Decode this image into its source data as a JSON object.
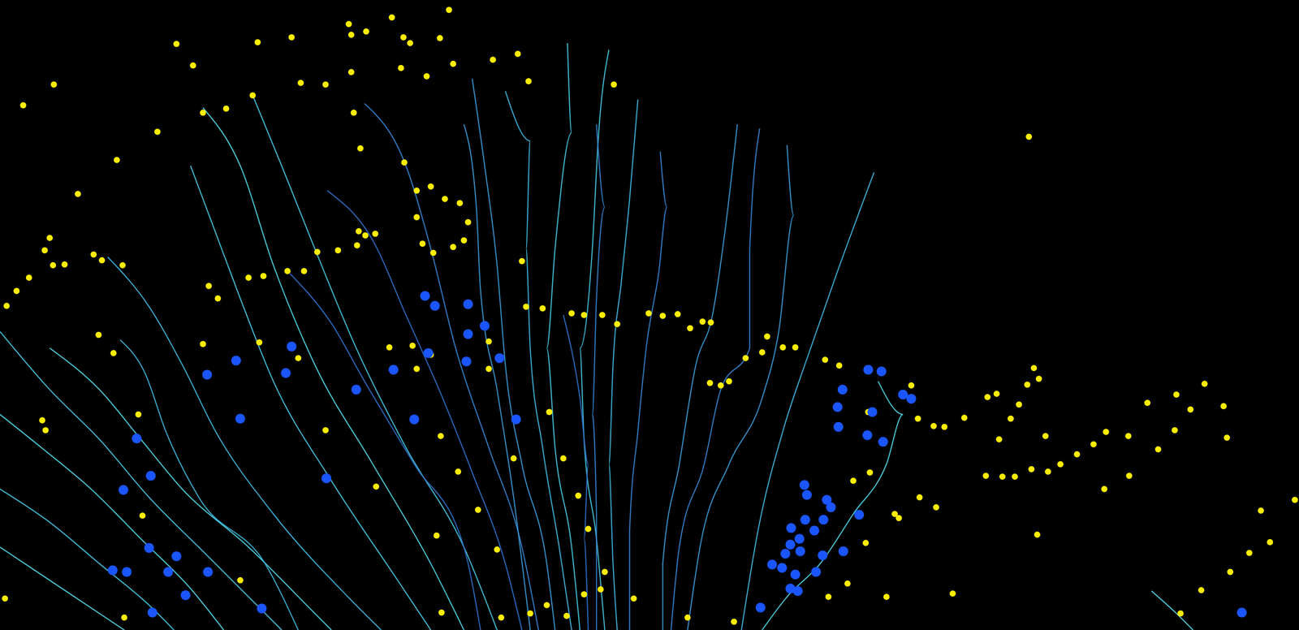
{
  "chart_data": {
    "type": "scatter",
    "xlim": [
      0,
      1568
    ],
    "ylim": [
      0,
      760
    ],
    "tick_labels": false,
    "grid": false,
    "series": [
      {
        "type": "line",
        "color": "#3fb8e0",
        "x": [
          1055,
          1010,
          975,
          945,
          915,
          895
        ],
        "y": [
          552,
          430,
          330,
          240,
          120,
          0
        ]
      },
      {
        "type": "line",
        "color": "#3a9ad8",
        "x": [
          950,
          958,
          940,
          920,
          880,
          845,
          830
        ],
        "y": [
          585,
          500,
          360,
          280,
          200,
          100,
          0
        ]
      },
      {
        "type": "line",
        "color": "#3585d4",
        "x": [
          917,
          905,
          905,
          870,
          850,
          820,
          810
        ],
        "y": [
          605,
          460,
          340,
          290,
          200,
          100,
          0
        ]
      },
      {
        "type": "line",
        "color": "#3a9ad8",
        "x": [
          890,
          875,
          860,
          840,
          820,
          800,
          800
        ],
        "y": [
          610,
          480,
          380,
          320,
          200,
          80,
          0
        ]
      },
      {
        "type": "line",
        "color": "#3585d4",
        "x": [
          797,
          805,
          795,
          780,
          770,
          760,
          760
        ],
        "y": [
          577,
          510,
          430,
          340,
          240,
          120,
          0
        ]
      },
      {
        "type": "line",
        "color": "#3fb8e0",
        "x": [
          770,
          760,
          750,
          740,
          735,
          740,
          745
        ],
        "y": [
          640,
          520,
          420,
          320,
          200,
          80,
          0
        ]
      },
      {
        "type": "line",
        "color": "#45c8e2",
        "x": [
          735,
          722,
          715,
          700,
          705,
          720,
          730
        ],
        "y": [
          700,
          590,
          460,
          340,
          230,
          110,
          0
        ]
      },
      {
        "type": "line",
        "color": "#45c8e2",
        "x": [
          685,
          690,
          670,
          660,
          670,
          690,
          700
        ],
        "y": [
          708,
          600,
          460,
          340,
          220,
          100,
          0
        ]
      },
      {
        "type": "line",
        "color": "#3fb8e0",
        "x": [
          610,
          640,
          635,
          640,
          655,
          675,
          690
        ],
        "y": [
          650,
          590,
          460,
          340,
          220,
          100,
          0
        ]
      },
      {
        "type": "line",
        "color": "#3a9ad8",
        "x": [
          570,
          585,
          600,
          610,
          630,
          660,
          670
        ],
        "y": [
          665,
          560,
          440,
          320,
          200,
          80,
          0
        ]
      },
      {
        "type": "line",
        "color": "#3585d4",
        "x": [
          440,
          490,
          520,
          550,
          590,
          630,
          650
        ],
        "y": [
          635,
          560,
          460,
          340,
          220,
          100,
          0
        ]
      },
      {
        "type": "line",
        "color": "#2f70cc",
        "x": [
          395,
          450,
          490,
          530,
          570,
          610,
          630
        ],
        "y": [
          530,
          470,
          380,
          290,
          190,
          80,
          0
        ]
      },
      {
        "type": "line",
        "color": "#45c8e2",
        "x": [
          305,
          340,
          380,
          430,
          490,
          560,
          600
        ],
        "y": [
          645,
          560,
          460,
          340,
          220,
          100,
          0
        ]
      },
      {
        "type": "line",
        "color": "#4fd6e6",
        "x": [
          245,
          290,
          330,
          380,
          450,
          520,
          560
        ],
        "y": [
          630,
          560,
          440,
          320,
          200,
          80,
          0
        ]
      },
      {
        "type": "line",
        "color": "#45c8e2",
        "x": [
          230,
          260,
          290,
          330,
          400,
          480,
          520
        ],
        "y": [
          560,
          480,
          400,
          300,
          180,
          60,
          0
        ]
      },
      {
        "type": "line",
        "color": "#3fb8e0",
        "x": [
          130,
          180,
          220,
          260,
          330,
          420,
          460
        ],
        "y": [
          450,
          390,
          320,
          240,
          140,
          40,
          0
        ]
      },
      {
        "type": "line",
        "color": "#4fd6e6",
        "x": [
          60,
          120,
          170,
          220,
          300,
          380,
          400
        ],
        "y": [
          340,
          290,
          230,
          170,
          100,
          20,
          0
        ]
      },
      {
        "type": "line",
        "color": "#45c8e2",
        "x": [
          0,
          60,
          120,
          180,
          250,
          320,
          340
        ],
        "y": [
          360,
          290,
          230,
          160,
          90,
          20,
          0
        ]
      },
      {
        "type": "line",
        "color": "#4fd6e6",
        "x": [
          0,
          50,
          110,
          170,
          230,
          270
        ],
        "y": [
          260,
          220,
          170,
          110,
          50,
          0
        ]
      },
      {
        "type": "line",
        "color": "#45c8e2",
        "x": [
          0,
          60,
          120,
          180,
          210
        ],
        "y": [
          170,
          130,
          80,
          30,
          0
        ]
      },
      {
        "type": "line",
        "color": "#4fd6e6",
        "x": [
          0,
          60,
          120,
          150
        ],
        "y": [
          100,
          60,
          20,
          0
        ]
      },
      {
        "type": "line",
        "color": "#3fb8e0",
        "x": [
          145,
          175,
          200,
          240,
          320,
          360
        ],
        "y": [
          350,
          310,
          240,
          160,
          80,
          0
        ]
      },
      {
        "type": "line",
        "color": "#4fd6e6",
        "x": [
          1060,
          1090,
          1070,
          1030,
          990,
          950,
          920
        ],
        "y": [
          300,
          260,
          200,
          140,
          80,
          40,
          0
        ]
      },
      {
        "type": "line",
        "color": "#4fd6e6",
        "x": [
          1390,
          1420,
          1440
        ],
        "y": [
          47,
          20,
          0
        ]
      },
      {
        "type": "line",
        "color": "#2f70cc",
        "x": [
          680,
          700,
          710,
          705,
          710
        ],
        "y": [
          380,
          280,
          200,
          110,
          0
        ]
      },
      {
        "type": "line",
        "color": "#3a9ad8",
        "x": [
          560,
          575,
          580,
          600,
          620,
          640
        ],
        "y": [
          610,
          510,
          410,
          290,
          160,
          0
        ]
      },
      {
        "type": "line",
        "color": "#3585d4",
        "x": [
          720,
          730,
          720,
          715,
          720,
          720
        ],
        "y": [
          610,
          510,
          400,
          260,
          140,
          0
        ]
      },
      {
        "type": "line",
        "color": "#2f70cc",
        "x": [
          350,
          400,
          440,
          500,
          560,
          580
        ],
        "y": [
          430,
          370,
          300,
          200,
          100,
          0
        ]
      },
      {
        "type": "scatter",
        "marker": "circle",
        "color": "#ffee00",
        "x": [
          213,
          233,
          311,
          352,
          421,
          424,
          442,
          473,
          487,
          495,
          531,
          542,
          595,
          625,
          638,
          547,
          515,
          484,
          424,
          393,
          363,
          305,
          273,
          245,
          190,
          141,
          94,
          28,
          65,
          435,
          427,
          741,
          1242,
          60,
          54,
          20,
          8,
          113,
          123,
          148,
          78,
          64,
          35,
          252,
          263,
          300,
          318,
          347,
          367,
          383,
          408,
          431,
          433,
          453,
          441,
          488,
          503,
          520,
          537,
          555,
          565,
          503,
          510,
          523,
          547,
          560,
          630,
          635,
          655,
          690,
          705,
          727,
          745,
          783,
          800,
          818,
          848,
          858,
          833,
          926,
          945,
          960,
          996,
          1013,
          1100,
          1108,
          1127,
          1140,
          1164,
          1048,
          1192,
          1203,
          1240,
          1254,
          1248,
          1230,
          1220,
          1206,
          1190,
          1210,
          1225,
          1245,
          1265,
          1280,
          1300,
          1320,
          1335,
          1362,
          1385,
          1420,
          1437,
          1454,
          1477,
          1481,
          1398,
          1418,
          1363,
          1333,
          1262,
          1522,
          1563,
          1533,
          1508,
          1485,
          1150,
          1252,
          1425,
          1450,
          245,
          313,
          360,
          137,
          119,
          51,
          55,
          167,
          172,
          150,
          6,
          393,
          454,
          532,
          553,
          577,
          600,
          620,
          663,
          680,
          698,
          710,
          730,
          705,
          725,
          640,
          605,
          660,
          684,
          765,
          830,
          886,
          857,
          870,
          880,
          900,
          920,
          1080,
          1085,
          1110,
          1130,
          1050,
          1045,
          1023,
          1000,
          1070,
          1030,
          527,
          533,
          290,
          470,
          498,
          503,
          520,
          590,
          590
        ],
        "y": [
          707,
          681,
          709,
          715,
          731,
          718,
          722,
          739,
          715,
          708,
          714,
          748,
          688,
          695,
          662,
          683,
          668,
          678,
          673,
          658,
          660,
          645,
          629,
          624,
          601,
          567,
          526,
          633,
          658,
          581,
          624,
          658,
          595,
          473,
          458,
          409,
          391,
          453,
          446,
          440,
          441,
          440,
          425,
          415,
          400,
          425,
          427,
          433,
          433,
          456,
          458,
          464,
          481,
          478,
          476,
          564,
          530,
          535,
          520,
          515,
          492,
          498,
          466,
          455,
          462,
          470,
          445,
          390,
          388,
          382,
          380,
          380,
          369,
          382,
          379,
          381,
          372,
          371,
          364,
          354,
          341,
          341,
          326,
          319,
          295,
          255,
          246,
          245,
          256,
          263,
          281,
          285,
          296,
          303,
          316,
          272,
          255,
          230,
          186,
          185,
          185,
          194,
          191,
          200,
          212,
          224,
          239,
          234,
          274,
          284,
          266,
          297,
          270,
          232,
          218,
          241,
          186,
          170,
          234,
          144,
          157,
          106,
          93,
          70,
          44,
          115,
          20,
          48,
          345,
          347,
          328,
          334,
          356,
          253,
          241,
          260,
          138,
          15,
          38,
          241,
          173,
          234,
          191,
          145,
          97,
          207,
          263,
          207,
          162,
          122,
          70,
          43,
          49,
          20,
          15,
          30,
          17,
          38,
          15,
          10,
          298,
          295,
          300,
          328,
          335,
          140,
          135,
          160,
          148,
          190,
          105,
          56,
          40,
          40,
          180,
          114,
          21,
          60,
          341,
          343,
          315,
          332,
          348,
          315
        ]
      },
      {
        "type": "scatter",
        "marker": "circle",
        "color": "#1a55ff",
        "x": [
          513,
          525,
          565,
          585,
          565,
          517,
          563,
          603,
          475,
          430,
          352,
          285,
          345,
          250,
          290,
          500,
          623,
          394,
          165,
          182,
          149,
          180,
          213,
          203,
          251,
          136,
          153,
          224,
          316,
          184,
          1048,
          1064,
          1017,
          1011,
          1053,
          1012,
          1047,
          1066,
          1090,
          1100,
          971,
          974,
          998,
          1003,
          972,
          994,
          1037,
          955,
          983,
          965,
          954,
          966,
          948,
          932,
          944,
          960,
          985,
          1018,
          993,
          954,
          963,
          918,
          1499
        ],
        "y": [
          403,
          391,
          393,
          367,
          357,
          334,
          324,
          328,
          314,
          290,
          342,
          325,
          310,
          308,
          255,
          254,
          254,
          183,
          231,
          186,
          169,
          99,
          89,
          70,
          70,
          72,
          70,
          42,
          26,
          21,
          314,
          312,
          290,
          269,
          263,
          245,
          235,
          227,
          284,
          279,
          175,
          163,
          157,
          148,
          133,
          133,
          139,
          123,
          120,
          110,
          103,
          95,
          92,
          79,
          75,
          67,
          70,
          95,
          90,
          50,
          47,
          27,
          21
        ]
      }
    ]
  }
}
